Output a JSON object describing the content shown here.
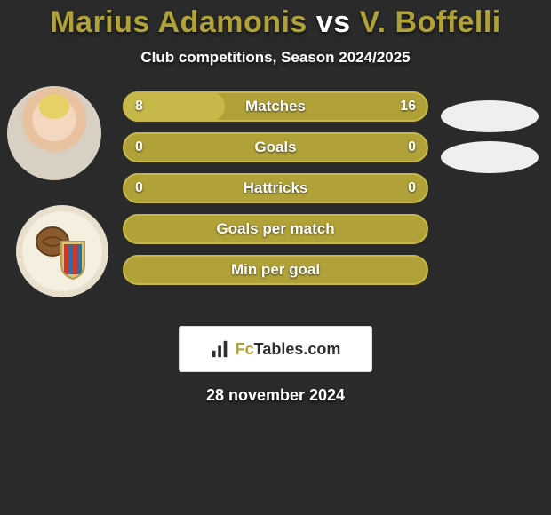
{
  "title": {
    "player1": "Marius Adamonis",
    "vs": "vs",
    "player2": "V. Boffelli",
    "player1_color": "#b0a238",
    "vs_color": "#ffffff",
    "player2_color": "#b0a238",
    "fontsize": 34
  },
  "subtitle": {
    "text": "Club competitions, Season 2024/2025",
    "fontsize": 17
  },
  "bars": {
    "background_color": "#2a2a2a",
    "bar_color": "#b0a238",
    "bar_border_color": "#c7b84a",
    "bar_highlight_color": "#c7b84a",
    "text_color": "#ffffff",
    "label_fontsize": 17,
    "value_fontsize": 16,
    "rows": [
      {
        "label": "Matches",
        "left": "8",
        "right": "16",
        "left_num": 8,
        "right_num": 16,
        "show_values": true
      },
      {
        "label": "Goals",
        "left": "0",
        "right": "0",
        "left_num": 0,
        "right_num": 0,
        "show_values": true
      },
      {
        "label": "Hattricks",
        "left": "0",
        "right": "0",
        "left_num": 0,
        "right_num": 0,
        "show_values": true
      },
      {
        "label": "Goals per match",
        "left": "",
        "right": "",
        "left_num": 0,
        "right_num": 0,
        "show_values": false
      },
      {
        "label": "Min per goal",
        "left": "",
        "right": "",
        "left_num": 0,
        "right_num": 0,
        "show_values": false
      }
    ]
  },
  "right_ovals": {
    "color": "#efefef",
    "count": 2
  },
  "club_badge": {
    "name": "Catania",
    "ball_color": "#8a5a2c",
    "shield_stripes": [
      "#c73a2e",
      "#2e6ea8",
      "#c73a2e",
      "#2e6ea8"
    ],
    "shield_border": "#d5c47a"
  },
  "footer_card": {
    "brand_prefix": "Fc",
    "brand_suffix": "Tables.com",
    "background": "#ffffff",
    "text_color": "#2f2f2f"
  },
  "date": {
    "text": "28 november 2024",
    "fontsize": 18
  }
}
